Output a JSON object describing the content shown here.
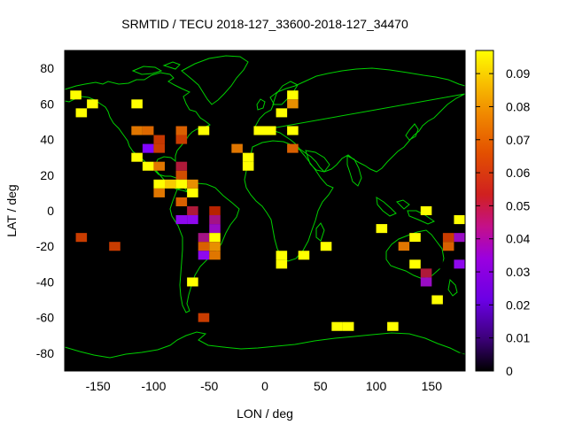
{
  "chart_data": {
    "type": "heatmap",
    "title": "SRMTID / TECU 2018-127_33600-2018-127_34470",
    "xlabel": "LON / deg",
    "ylabel": "LAT / deg",
    "xlim": [
      -180,
      180
    ],
    "ylim": [
      -90,
      90
    ],
    "xticks": [
      -150,
      -100,
      -50,
      0,
      50,
      100,
      150
    ],
    "yticks": [
      -80,
      -60,
      -40,
      -20,
      0,
      20,
      40,
      60,
      80
    ],
    "xtick_labels": [
      "-150",
      "-100",
      "-50",
      "0",
      "50",
      "100",
      "150"
    ],
    "ytick_labels": [
      "-80",
      "-60",
      "-40",
      "-20",
      "0",
      "20",
      "40",
      "60",
      "80"
    ],
    "colorbar": {
      "range": [
        0,
        0.097
      ],
      "ticks": [
        0,
        0.01,
        0.02,
        0.03,
        0.04,
        0.05,
        0.06,
        0.07,
        0.08,
        0.09
      ],
      "tick_labels": [
        "0",
        "0.01",
        "0.02",
        "0.03",
        "0.04",
        "0.05",
        "0.06",
        "0.07",
        "0.08",
        "0.09"
      ],
      "colormap": "gnuplot-pm3d"
    },
    "background_color": "#000000",
    "coastline_color": "#00d000",
    "cell_size_deg": [
      10,
      5
    ],
    "cells": [
      {
        "lon": -170,
        "lat": 65,
        "value": 0.097
      },
      {
        "lon": -155,
        "lat": 60,
        "value": 0.097
      },
      {
        "lon": -165,
        "lat": 55,
        "value": 0.097
      },
      {
        "lon": -115,
        "lat": 60,
        "value": 0.097
      },
      {
        "lon": -115,
        "lat": 45,
        "value": 0.075
      },
      {
        "lon": -105,
        "lat": 45,
        "value": 0.072
      },
      {
        "lon": -95,
        "lat": 40,
        "value": 0.058
      },
      {
        "lon": -105,
        "lat": 35,
        "value": 0.025
      },
      {
        "lon": -95,
        "lat": 35,
        "value": 0.06
      },
      {
        "lon": -115,
        "lat": 30,
        "value": 0.097
      },
      {
        "lon": -105,
        "lat": 25,
        "value": 0.097
      },
      {
        "lon": -95,
        "lat": 25,
        "value": 0.075
      },
      {
        "lon": -75,
        "lat": 45,
        "value": 0.07
      },
      {
        "lon": -75,
        "lat": 40,
        "value": 0.06
      },
      {
        "lon": -55,
        "lat": 45,
        "value": 0.097
      },
      {
        "lon": -75,
        "lat": 25,
        "value": 0.045
      },
      {
        "lon": -75,
        "lat": 20,
        "value": 0.065
      },
      {
        "lon": -65,
        "lat": 15,
        "value": 0.08
      },
      {
        "lon": -65,
        "lat": 10,
        "value": 0.097
      },
      {
        "lon": -95,
        "lat": 15,
        "value": 0.097
      },
      {
        "lon": -85,
        "lat": 15,
        "value": 0.09
      },
      {
        "lon": -75,
        "lat": 15,
        "value": 0.1
      },
      {
        "lon": -95,
        "lat": 10,
        "value": 0.075
      },
      {
        "lon": -75,
        "lat": 5,
        "value": 0.07
      },
      {
        "lon": -65,
        "lat": 0,
        "value": 0.045
      },
      {
        "lon": -75,
        "lat": -5,
        "value": 0.03
      },
      {
        "lon": -65,
        "lat": -5,
        "value": 0.03
      },
      {
        "lon": -45,
        "lat": 0,
        "value": 0.05
      },
      {
        "lon": -45,
        "lat": -5,
        "value": 0.04
      },
      {
        "lon": -45,
        "lat": -10,
        "value": 0.035
      },
      {
        "lon": -55,
        "lat": -15,
        "value": 0.04
      },
      {
        "lon": -45,
        "lat": -15,
        "value": 0.097
      },
      {
        "lon": -55,
        "lat": -20,
        "value": 0.07
      },
      {
        "lon": -45,
        "lat": -20,
        "value": 0.08
      },
      {
        "lon": -55,
        "lat": -25,
        "value": 0.03
      },
      {
        "lon": -45,
        "lat": -25,
        "value": 0.075
      },
      {
        "lon": -65,
        "lat": -40,
        "value": 0.097
      },
      {
        "lon": -55,
        "lat": -60,
        "value": 0.06
      },
      {
        "lon": -165,
        "lat": -15,
        "value": 0.06
      },
      {
        "lon": -135,
        "lat": -20,
        "value": 0.06
      },
      {
        "lon": -25,
        "lat": 35,
        "value": 0.075
      },
      {
        "lon": -15,
        "lat": 30,
        "value": 0.097
      },
      {
        "lon": -15,
        "lat": 25,
        "value": 0.097
      },
      {
        "lon": -5,
        "lat": 45,
        "value": 0.097
      },
      {
        "lon": 5,
        "lat": 45,
        "value": 0.097
      },
      {
        "lon": 15,
        "lat": 55,
        "value": 0.097
      },
      {
        "lon": 25,
        "lat": 65,
        "value": 0.097
      },
      {
        "lon": 25,
        "lat": 60,
        "value": 0.08
      },
      {
        "lon": 25,
        "lat": 45,
        "value": 0.097
      },
      {
        "lon": 25,
        "lat": 35,
        "value": 0.07
      },
      {
        "lon": 15,
        "lat": -25,
        "value": 0.097
      },
      {
        "lon": 15,
        "lat": -30,
        "value": 0.097
      },
      {
        "lon": 35,
        "lat": -25,
        "value": 0.097
      },
      {
        "lon": 55,
        "lat": -20,
        "value": 0.097
      },
      {
        "lon": 65,
        "lat": -65,
        "value": 0.097
      },
      {
        "lon": 75,
        "lat": -65,
        "value": 0.097
      },
      {
        "lon": 115,
        "lat": -65,
        "value": 0.097
      },
      {
        "lon": 105,
        "lat": -10,
        "value": 0.097
      },
      {
        "lon": 145,
        "lat": 0,
        "value": 0.097
      },
      {
        "lon": 175,
        "lat": -5,
        "value": 0.097
      },
      {
        "lon": 165,
        "lat": 0,
        "value": 0.0
      },
      {
        "lon": 135,
        "lat": -15,
        "value": 0.097
      },
      {
        "lon": 125,
        "lat": -20,
        "value": 0.075
      },
      {
        "lon": 135,
        "lat": -20,
        "value": 0.0
      },
      {
        "lon": 125,
        "lat": -25,
        "value": 0.0
      },
      {
        "lon": 135,
        "lat": -25,
        "value": 0.0
      },
      {
        "lon": 145,
        "lat": -25,
        "value": 0.0
      },
      {
        "lon": 165,
        "lat": -15,
        "value": 0.06
      },
      {
        "lon": 175,
        "lat": -15,
        "value": 0.035
      },
      {
        "lon": 165,
        "lat": -20,
        "value": 0.07
      },
      {
        "lon": 135,
        "lat": -30,
        "value": 0.097
      },
      {
        "lon": 155,
        "lat": -30,
        "value": 0.0
      },
      {
        "lon": 175,
        "lat": -30,
        "value": 0.03
      },
      {
        "lon": 145,
        "lat": -35,
        "value": 0.045
      },
      {
        "lon": 145,
        "lat": -40,
        "value": 0.035
      },
      {
        "lon": 155,
        "lat": -50,
        "value": 0.097
      }
    ]
  }
}
